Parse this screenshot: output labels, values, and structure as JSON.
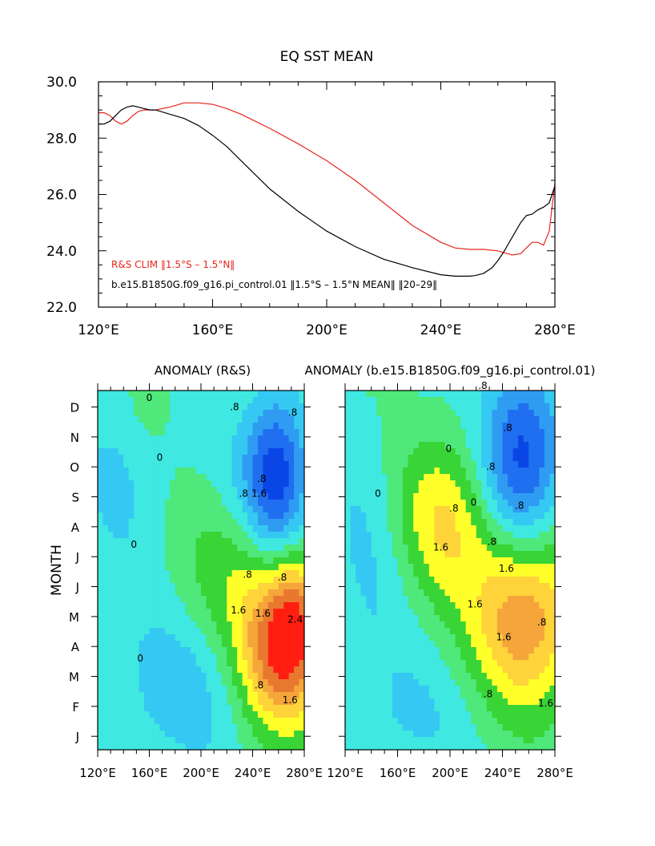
{
  "colors": {
    "obs_line": "#e8261c",
    "model_line": "#000000",
    "fill_levels": [
      "#0a46e6",
      "#1f6ff0",
      "#2f9cf2",
      "#35c8f3",
      "#3fe8e0",
      "#4fe87a",
      "#39d436",
      "#ffff2a",
      "#ffd33a",
      "#f5a53a",
      "#e8782f",
      "#ff1e10"
    ]
  },
  "chart_data": [
    {
      "type": "line",
      "title": "EQ SST MEAN",
      "xlabel": "",
      "ylabel": "",
      "xlim": [
        120,
        280
      ],
      "ylim": [
        22,
        30
      ],
      "x_ticks": [
        120,
        160,
        200,
        240,
        280
      ],
      "x_tick_labels": [
        "120°E",
        "160°E",
        "200°E",
        "240°E",
        "280°E"
      ],
      "y_ticks": [
        22,
        24,
        26,
        28,
        30
      ],
      "y_tick_labels": [
        "22.0",
        "24.0",
        "26.0",
        "28.0",
        "30.0"
      ],
      "legend": [
        {
          "text": "R&S CLIM ‖1.5°S – 1.5°N‖",
          "color_key": "obs_line"
        },
        {
          "text": "b.e15.B1850G.f09_g16.pi_control.01 ‖1.5°S – 1.5°N MEAN‖ ‖20–29‖",
          "color_key": "model_line"
        }
      ],
      "series": [
        {
          "color_key": "obs_line",
          "x": [
            120,
            122,
            124,
            126,
            128,
            130,
            132,
            134,
            136,
            138,
            140,
            145,
            150,
            155,
            160,
            165,
            170,
            175,
            180,
            190,
            200,
            210,
            220,
            230,
            240,
            245,
            250,
            255,
            260,
            265,
            268,
            270,
            272,
            274,
            276,
            278,
            280
          ],
          "y": [
            28.9,
            28.9,
            28.8,
            28.6,
            28.5,
            28.6,
            28.8,
            28.95,
            29.0,
            29.0,
            29.0,
            29.1,
            29.25,
            29.25,
            29.2,
            29.05,
            28.85,
            28.6,
            28.35,
            27.8,
            27.2,
            26.5,
            25.7,
            24.9,
            24.3,
            24.1,
            24.05,
            24.05,
            24.0,
            23.85,
            23.9,
            24.1,
            24.3,
            24.3,
            24.2,
            24.7,
            26.4
          ]
        },
        {
          "color_key": "model_line",
          "x": [
            120,
            122,
            124,
            126,
            128,
            130,
            132,
            134,
            136,
            138,
            140,
            145,
            150,
            155,
            160,
            165,
            170,
            175,
            180,
            190,
            200,
            210,
            220,
            230,
            240,
            245,
            250,
            252,
            255,
            258,
            260,
            262,
            264,
            266,
            268,
            270,
            272,
            274,
            276,
            278,
            280
          ],
          "y": [
            28.5,
            28.5,
            28.6,
            28.8,
            29.0,
            29.1,
            29.15,
            29.1,
            29.05,
            29.0,
            29.0,
            28.85,
            28.7,
            28.45,
            28.1,
            27.7,
            27.2,
            26.7,
            26.2,
            25.4,
            24.7,
            24.15,
            23.7,
            23.4,
            23.15,
            23.1,
            23.1,
            23.12,
            23.2,
            23.4,
            23.65,
            23.95,
            24.3,
            24.65,
            25.0,
            25.25,
            25.3,
            25.45,
            25.55,
            25.7,
            26.3
          ]
        }
      ]
    },
    {
      "type": "heatmap",
      "title": "ANOMALY (R&S)",
      "ylabel": "MONTH",
      "xlim": [
        120,
        280
      ],
      "x_ticks": [
        120,
        160,
        200,
        240,
        280
      ],
      "x_tick_labels": [
        "120°E",
        "160°E",
        "200°E",
        "240°E",
        "280°E"
      ],
      "y_tick_labels": [
        "J",
        "F",
        "M",
        "A",
        "M",
        "J",
        "J",
        "A",
        "S",
        "O",
        "N",
        "D"
      ],
      "contour_labels": [
        ".8",
        ".8",
        "1.6",
        ".8",
        ".8",
        ".8",
        "1.6",
        ".8",
        "1.6",
        "2.4",
        ".8",
        "1.6",
        "0",
        "0",
        "0",
        "0"
      ],
      "anomalies": [
        {
          "x": 265,
          "m": 3.0,
          "sx": 24,
          "sy": 1.8,
          "amp": 2.8
        },
        {
          "x": 272,
          "m": 4.6,
          "sx": 10,
          "sy": 1.2,
          "amp": 0.6
        },
        {
          "x": 258,
          "m": 8.7,
          "sx": 18,
          "sy": 1.9,
          "amp": -1.95
        },
        {
          "x": 225,
          "m": 5.5,
          "sx": 30,
          "sy": 1.6,
          "amp": 0.6
        },
        {
          "x": 140,
          "m": 9.0,
          "sx": 25,
          "sy": 2.5,
          "amp": -0.45
        },
        {
          "x": 160,
          "m": 11.5,
          "sx": 12,
          "sy": 1.2,
          "amp": 0.35
        },
        {
          "x": 180,
          "m": 1.5,
          "sx": 40,
          "sy": 2.0,
          "amp": -0.55
        }
      ]
    },
    {
      "type": "heatmap",
      "title": "ANOMALY (b.e15.B1850G.f09_g16.pi_control.01)",
      "xlim": [
        120,
        280
      ],
      "x_ticks": [
        120,
        160,
        200,
        240,
        280
      ],
      "x_tick_labels": [
        "120°E",
        "160°E",
        "200°E",
        "240°E",
        "280°E"
      ],
      "contour_labels": [
        ".8",
        ".8",
        ".8",
        ".8",
        ".8",
        ".8",
        "1.6",
        "1.6",
        "1.6",
        ".8",
        "1.6",
        "1.6",
        ".8",
        "0",
        "0",
        "0"
      ],
      "anomalies": [
        {
          "x": 258,
          "m": 4.0,
          "sx": 28,
          "sy": 2.1,
          "amp": 2.0
        },
        {
          "x": 195,
          "m": 7.2,
          "sx": 28,
          "sy": 2.0,
          "amp": 1.2
        },
        {
          "x": 255,
          "m": 9.3,
          "sx": 22,
          "sy": 2.2,
          "amp": -1.85
        },
        {
          "x": 140,
          "m": 6.0,
          "sx": 25,
          "sy": 3.5,
          "amp": -0.45
        },
        {
          "x": 170,
          "m": 0.5,
          "sx": 30,
          "sy": 1.5,
          "amp": -0.4
        }
      ]
    }
  ]
}
